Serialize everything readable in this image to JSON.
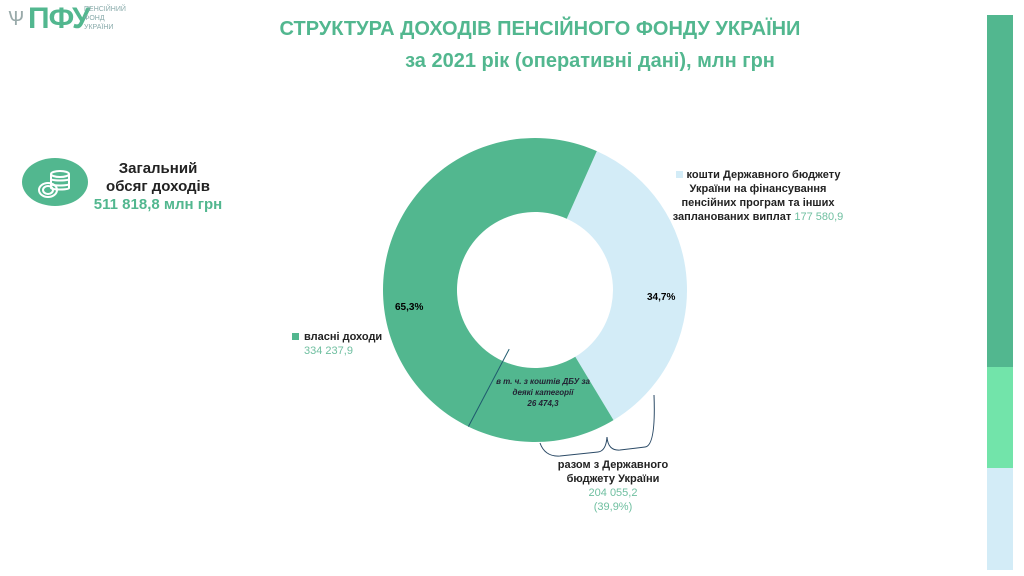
{
  "logo": {
    "text": "ПФУ",
    "subtitle": "ПЕНСІЙНИЙ ФОНД УКРАЇНИ"
  },
  "title": "СТРУКТУРА  ДОХОДІВ ПЕНСІЙНОГО ФОНДУ УКРАЇНИ",
  "subtitle": "за 2021 рік (оперативні дані), млн грн",
  "total": {
    "label1": "Загальний",
    "label2": "обсяг доходів",
    "value": "511 818,8 млн грн",
    "icon": "coins-icon"
  },
  "chart_data": {
    "type": "pie",
    "donut": true,
    "slices": [
      {
        "name": "власні доходи",
        "value": 334237.9,
        "value_label": "334 237,9",
        "percent_label": "65,3%",
        "color": "#52b78f"
      },
      {
        "name": "кошти Державного бюджету України на фінансування пенсійних програм та інших запланованих  виплат",
        "value": 177580.9,
        "value_label": "177 580,9",
        "percent_label": "34,7%",
        "color": "#d3ecf7"
      }
    ],
    "annotations": {
      "sub_segment": {
        "label1": "в т. ч. з коштів ДБУ за",
        "label2": "деякі категорії",
        "value": "26 474,3",
        "value_num": 26474.3
      },
      "bracket": {
        "label1": "разом з Державного",
        "label2": "бюджету України",
        "value": "204 055,2",
        "percent": "(39,9%)"
      }
    }
  },
  "colors": {
    "accent": "#52b78f",
    "light_blue": "#d3ecf7",
    "light_green": "#72e4aa"
  }
}
